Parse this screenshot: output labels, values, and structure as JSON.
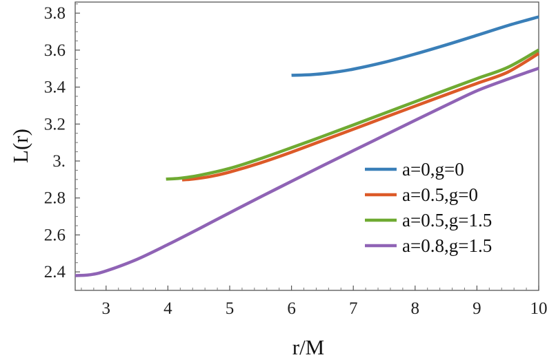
{
  "chart_data": {
    "type": "line",
    "title": "",
    "xlabel": "r/M",
    "ylabel": "L(r)",
    "xlim": [
      2.5,
      10
    ],
    "ylim": [
      2.3,
      3.86
    ],
    "xticks": [
      3,
      4,
      5,
      6,
      7,
      8,
      9,
      10
    ],
    "xtick_labels": [
      "3",
      "4",
      "5",
      "6",
      "7",
      "8",
      "9",
      "10"
    ],
    "yticks": [
      2.4,
      2.6,
      2.8,
      3.0,
      3.2,
      3.4,
      3.6,
      3.8
    ],
    "ytick_labels": [
      "2.4",
      "2.6",
      "2.8",
      "3.",
      "3.2",
      "3.4",
      "3.6",
      "3.8"
    ],
    "grid": false,
    "legend_position": "lower-right",
    "series": [
      {
        "name": "a=0,g=0",
        "color": "#3a7fb8",
        "x": [
          6.0,
          6.3,
          6.6,
          7.0,
          7.5,
          8.0,
          8.5,
          9.0,
          9.5,
          10.0
        ],
        "y": [
          3.464,
          3.467,
          3.476,
          3.497,
          3.534,
          3.579,
          3.628,
          3.68,
          3.733,
          3.78
        ]
      },
      {
        "name": "a=0.5,g=0",
        "color": "#dc5a28",
        "x": [
          4.23,
          4.4,
          4.7,
          5.0,
          5.5,
          6.0,
          6.5,
          7.0,
          7.5,
          8.0,
          8.5,
          9.0,
          9.5,
          10.0
        ],
        "y": [
          2.898,
          2.902,
          2.917,
          2.94,
          2.99,
          3.048,
          3.11,
          3.172,
          3.235,
          3.297,
          3.359,
          3.42,
          3.481,
          3.582
        ]
      },
      {
        "name": "a=0.5,g=1.5",
        "color": "#6faa32",
        "x": [
          3.97,
          4.2,
          4.5,
          5.0,
          5.5,
          6.0,
          6.5,
          7.0,
          7.5,
          8.0,
          8.5,
          9.0,
          9.5,
          10.0
        ],
        "y": [
          2.902,
          2.907,
          2.922,
          2.96,
          3.013,
          3.072,
          3.133,
          3.195,
          3.258,
          3.321,
          3.384,
          3.446,
          3.507,
          3.601
        ]
      },
      {
        "name": "a=0.8,g=1.5",
        "color": "#8f63b5",
        "x": [
          2.5,
          2.75,
          3.0,
          3.5,
          4.0,
          4.5,
          5.0,
          5.5,
          6.0,
          6.5,
          7.0,
          7.5,
          8.0,
          8.5,
          9.0,
          9.5,
          10.0
        ],
        "y": [
          2.38,
          2.385,
          2.405,
          2.468,
          2.548,
          2.633,
          2.72,
          2.806,
          2.89,
          2.974,
          3.056,
          3.138,
          3.22,
          3.301,
          3.38,
          3.443,
          3.502
        ]
      }
    ]
  }
}
